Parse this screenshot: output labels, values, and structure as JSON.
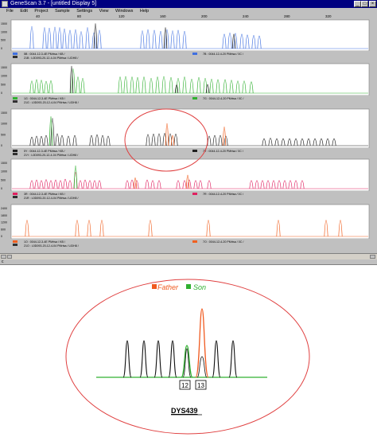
{
  "window": {
    "title": "GeneScan 3.7 - [untitled Display 5]",
    "minimize": "_",
    "maximize": "□",
    "close": "×"
  },
  "menu": [
    "File",
    "Edit",
    "Project",
    "Sample",
    "Settings",
    "View",
    "Windows",
    "Help"
  ],
  "ruler": [
    "40",
    "80",
    "120",
    "160",
    "200",
    "240",
    "280",
    "320",
    "360"
  ],
  "panels": [
    {
      "dye": "blue",
      "y_ticks": [
        "1500",
        "1000",
        "500",
        "0"
      ],
      "peak_pos": [
        40,
        56,
        62,
        69,
        75,
        81,
        88,
        95,
        102,
        110,
        118,
        125,
        179,
        186,
        194,
        202,
        210,
        217,
        224,
        232,
        282,
        289,
        296,
        304,
        311,
        319,
        326
      ],
      "peak_h": [
        0.85,
        0.8,
        0.78,
        0.82,
        0.8,
        0.75,
        0.7,
        0.72,
        0.65,
        0.8,
        0.6,
        0.7,
        0.68,
        0.72,
        0.7,
        0.66,
        0.72,
        0.68,
        0.7,
        0.66,
        0.55,
        0.6,
        0.58,
        0.55,
        0.52,
        0.5,
        0.48
      ],
      "accent_pos": [
        120,
        208,
        294
      ],
      "accent_h": [
        0.95,
        0.8,
        0.55
      ],
      "lane_left": "5B : 0044-12-3-4E PMrtsa / KB /",
      "lane_left2": "21B : L0D093-20-12-4-04 PMrtsa / LIDH8 /",
      "lane_right": "7B : 0044-12-4-20 PMrtsa / 0C /"
    },
    {
      "dye": "green",
      "y_ticks": [
        "1500",
        "1000",
        "500",
        "0"
      ],
      "peak_pos": [
        40,
        46,
        52,
        58,
        64,
        92,
        98,
        104,
        151,
        158,
        166,
        173,
        181,
        190,
        198,
        206,
        215,
        224,
        232,
        241,
        250,
        258,
        266,
        274,
        283,
        291,
        299,
        307,
        316
      ],
      "peak_h": [
        0.45,
        0.5,
        0.48,
        0.44,
        0.46,
        0.9,
        0.6,
        0.55,
        0.6,
        0.62,
        0.6,
        0.58,
        0.6,
        0.55,
        0.6,
        0.62,
        0.58,
        0.55,
        0.6,
        0.52,
        0.58,
        0.55,
        0.52,
        0.5,
        0.5,
        0.48,
        0.45,
        0.45,
        0.42
      ],
      "accent_pos": [
        90,
        222,
        261
      ],
      "accent_h": [
        1.0,
        0.3,
        0.32
      ],
      "lane_left": "1G : 0044-12-3-4E PMrtsa / KB /",
      "lane_left2": "21G : L0D093-20-12-4-04 PMrtsa / LIDH8 /",
      "lane_right": "7G : 0044-12-4-20 PMrtsa / 0C /"
    },
    {
      "dye": "yellow",
      "y_ticks": [
        "1500",
        "1000",
        "500",
        "0"
      ],
      "peak_pos": [
        40,
        46,
        52,
        58,
        66,
        72,
        78,
        86,
        94,
        115,
        122,
        129,
        136,
        186,
        193,
        200,
        207,
        214,
        221,
        263,
        270,
        277,
        284,
        332,
        340,
        348,
        356,
        364,
        372,
        380,
        388,
        396,
        404,
        412,
        420
      ],
      "peak_h": [
        0.25,
        0.28,
        0.27,
        0.3,
        0.8,
        0.35,
        0.3,
        0.28,
        0.3,
        0.3,
        0.32,
        0.3,
        0.28,
        0.33,
        0.34,
        0.35,
        0.36,
        0.35,
        0.34,
        0.28,
        0.3,
        0.3,
        0.28,
        0.2,
        0.22,
        0.2,
        0.2,
        0.2,
        0.2,
        0.2,
        0.2,
        0.2,
        0.2,
        0.2,
        0.2
      ],
      "accent_pos": [
        64,
        210,
        217,
        282
      ],
      "accent_h": [
        0.85,
        0.65,
        0.3,
        0.55
      ],
      "lane_left": "5Y : 0044-12-3-4E PMrtsa / KB /",
      "lane_left2": "21Y : L0D093-20-12-4-04 PMrtsa / LIDH8 /",
      "lane_right": "7Y : 0044-12-4-20 PMrtsa / 0C /"
    },
    {
      "dye": "red",
      "y_ticks": [
        "1500",
        "1000",
        "500",
        "0"
      ],
      "peak_pos": [
        40,
        46,
        52,
        58,
        64,
        70,
        76,
        82,
        88,
        95,
        101,
        107,
        113,
        119,
        125,
        160,
        166,
        172,
        185,
        192,
        200,
        224,
        232,
        238,
        246,
        252,
        263,
        316,
        323,
        330,
        337,
        344,
        351,
        358,
        365,
        372,
        380
      ],
      "peak_h": [
        0.3,
        0.32,
        0.3,
        0.33,
        0.3,
        0.32,
        0.3,
        0.35,
        0.3,
        0.6,
        0.3,
        0.32,
        0.3,
        0.3,
        0.3,
        0.3,
        0.32,
        0.3,
        0.32,
        0.3,
        0.3,
        0.3,
        0.3,
        0.32,
        0.3,
        0.3,
        0.3,
        0.3,
        0.3,
        0.3,
        0.3,
        0.3,
        0.3,
        0.3,
        0.3,
        0.3,
        0.3
      ],
      "accent_pos": [
        95,
        170,
        236
      ],
      "accent_h": [
        0.85,
        0.4,
        0.5
      ],
      "lane_left": "3R : 0044-12-3-4E PMrtsa / KB /",
      "lane_left2": "21R : L0D093-20-12-4-04 PMrtsa / LIDH8 /",
      "lane_right": "7R : 0044-12-4-20 PMrtsa / 0C /"
    },
    {
      "dye": "orange",
      "y_ticks": [
        "2400",
        "1800",
        "1200",
        "600",
        "0"
      ],
      "peak_pos": [
        34,
        97,
        112,
        128,
        189,
        262,
        350,
        410,
        428
      ],
      "peak_h": [
        0.55,
        0.55,
        0.55,
        0.55,
        0.55,
        0.55,
        0.55,
        0.55,
        0.55
      ],
      "accent_pos": [],
      "accent_h": [],
      "lane_left": "1O : 0044-12-3-4E PMrtsa / KB /",
      "lane_left2": "21O : L0D093-20-12-4-04 PMrtsa / LIDH8 /",
      "lane_right": "7O : 0044-12-4-20 PMrtsa / 0C /"
    }
  ],
  "status": "c",
  "zoom": {
    "legend_father": "Father",
    "legend_son": "Son",
    "allele_a": "12",
    "allele_b": "13",
    "locus": "DYS439",
    "colors": {
      "father": "#f05a20",
      "son": "#30b030",
      "ellipse": "#e04040",
      "trace": "#101010"
    }
  },
  "dye_colors": {
    "blue": "#4070e0",
    "green": "#30b030",
    "yellow": "#202020",
    "red": "#e02060",
    "orange": "#f06020"
  }
}
